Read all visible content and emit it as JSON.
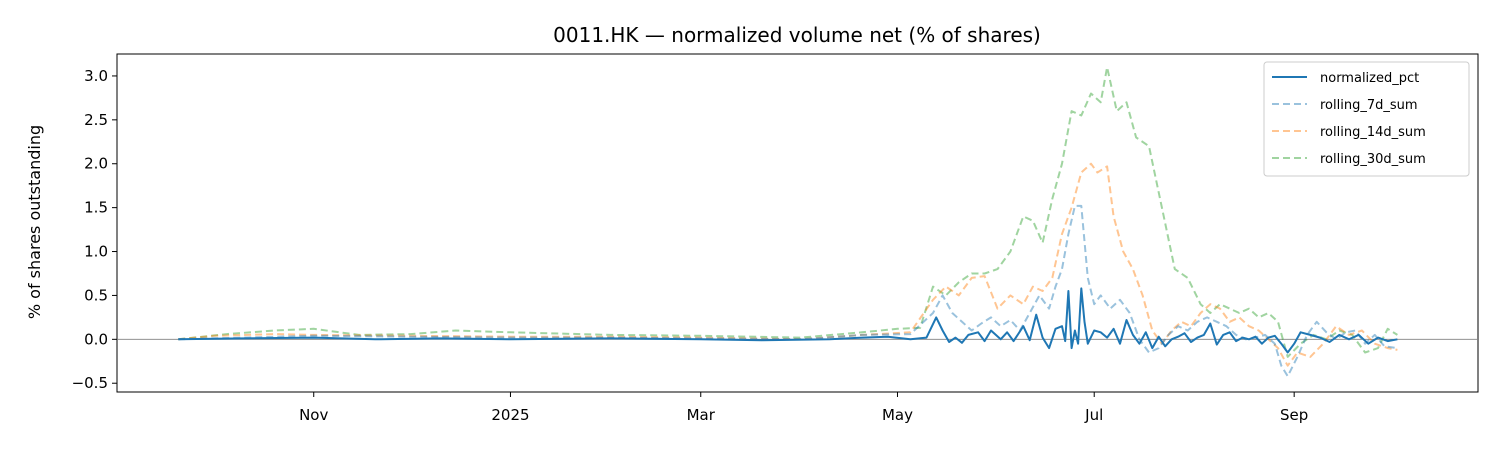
{
  "chart_data": {
    "type": "line",
    "title": "0011.HK — normalized volume net (% of shares)",
    "xlabel": "",
    "ylabel": "% of shares outstanding",
    "x_range": [
      "2024-09-01",
      "2025-10-28"
    ],
    "ylim": [
      -0.6,
      3.25
    ],
    "x_ticks": [
      {
        "date": "2024-11-01",
        "label": "Nov"
      },
      {
        "date": "2025-01-01",
        "label": "2025"
      },
      {
        "date": "2025-03-01",
        "label": "Mar"
      },
      {
        "date": "2025-05-01",
        "label": "May"
      },
      {
        "date": "2025-07-01",
        "label": "Jul"
      },
      {
        "date": "2025-09-01",
        "label": "Sep"
      }
    ],
    "y_ticks": [
      -0.5,
      0.0,
      0.5,
      1.0,
      1.5,
      2.0,
      2.5,
      3.0
    ],
    "y_tick_labels": [
      "−0.5",
      "0.0",
      "0.5",
      "1.0",
      "1.5",
      "2.0",
      "2.5",
      "3.0"
    ],
    "zero_line": true,
    "grid": false,
    "legend_position": "top-right",
    "series": [
      {
        "name": "normalized_pct",
        "color": "#1f77b4",
        "style": "solid",
        "points": [
          [
            "2024-09-20",
            0.0
          ],
          [
            "2024-10-10",
            0.01
          ],
          [
            "2024-11-01",
            0.02
          ],
          [
            "2024-11-20",
            0.0
          ],
          [
            "2024-12-10",
            0.01
          ],
          [
            "2025-01-01",
            0.0
          ],
          [
            "2025-02-01",
            0.01
          ],
          [
            "2025-03-01",
            0.0
          ],
          [
            "2025-03-20",
            -0.01
          ],
          [
            "2025-04-10",
            0.0
          ],
          [
            "2025-04-20",
            0.02
          ],
          [
            "2025-04-28",
            0.03
          ],
          [
            "2025-05-05",
            0.0
          ],
          [
            "2025-05-10",
            0.02
          ],
          [
            "2025-05-13",
            0.25
          ],
          [
            "2025-05-15",
            0.1
          ],
          [
            "2025-05-17",
            -0.03
          ],
          [
            "2025-05-19",
            0.02
          ],
          [
            "2025-05-21",
            -0.04
          ],
          [
            "2025-05-23",
            0.05
          ],
          [
            "2025-05-26",
            0.08
          ],
          [
            "2025-05-28",
            -0.02
          ],
          [
            "2025-05-30",
            0.1
          ],
          [
            "2025-06-02",
            0.0
          ],
          [
            "2025-06-04",
            0.08
          ],
          [
            "2025-06-06",
            -0.02
          ],
          [
            "2025-06-09",
            0.15
          ],
          [
            "2025-06-11",
            -0.01
          ],
          [
            "2025-06-13",
            0.28
          ],
          [
            "2025-06-15",
            0.02
          ],
          [
            "2025-06-17",
            -0.1
          ],
          [
            "2025-06-19",
            0.12
          ],
          [
            "2025-06-21",
            0.15
          ],
          [
            "2025-06-22",
            -0.02
          ],
          [
            "2025-06-23",
            0.55
          ],
          [
            "2025-06-24",
            -0.1
          ],
          [
            "2025-06-25",
            0.1
          ],
          [
            "2025-06-26",
            -0.05
          ],
          [
            "2025-06-27",
            0.58
          ],
          [
            "2025-06-28",
            0.2
          ],
          [
            "2025-06-29",
            -0.05
          ],
          [
            "2025-07-01",
            0.1
          ],
          [
            "2025-07-03",
            0.08
          ],
          [
            "2025-07-05",
            0.02
          ],
          [
            "2025-07-07",
            0.12
          ],
          [
            "2025-07-09",
            -0.05
          ],
          [
            "2025-07-11",
            0.22
          ],
          [
            "2025-07-13",
            0.05
          ],
          [
            "2025-07-15",
            -0.05
          ],
          [
            "2025-07-17",
            0.08
          ],
          [
            "2025-07-19",
            -0.1
          ],
          [
            "2025-07-21",
            0.03
          ],
          [
            "2025-07-23",
            -0.08
          ],
          [
            "2025-07-25",
            0.0
          ],
          [
            "2025-07-27",
            0.03
          ],
          [
            "2025-07-29",
            0.07
          ],
          [
            "2025-07-31",
            -0.03
          ],
          [
            "2025-08-02",
            0.02
          ],
          [
            "2025-08-04",
            0.05
          ],
          [
            "2025-08-06",
            0.18
          ],
          [
            "2025-08-08",
            -0.06
          ],
          [
            "2025-08-10",
            0.05
          ],
          [
            "2025-08-12",
            0.08
          ],
          [
            "2025-08-14",
            -0.02
          ],
          [
            "2025-08-16",
            0.02
          ],
          [
            "2025-08-18",
            0.0
          ],
          [
            "2025-08-20",
            0.03
          ],
          [
            "2025-08-22",
            -0.05
          ],
          [
            "2025-08-24",
            0.02
          ],
          [
            "2025-08-26",
            0.04
          ],
          [
            "2025-08-28",
            -0.05
          ],
          [
            "2025-08-30",
            -0.15
          ],
          [
            "2025-09-01",
            -0.05
          ],
          [
            "2025-09-03",
            0.08
          ],
          [
            "2025-09-06",
            0.05
          ],
          [
            "2025-09-09",
            0.02
          ],
          [
            "2025-09-12",
            -0.03
          ],
          [
            "2025-09-15",
            0.05
          ],
          [
            "2025-09-18",
            0.0
          ],
          [
            "2025-09-21",
            0.05
          ],
          [
            "2025-09-24",
            -0.05
          ],
          [
            "2025-09-27",
            0.02
          ],
          [
            "2025-09-30",
            -0.02
          ],
          [
            "2025-10-03",
            0.0
          ]
        ]
      },
      {
        "name": "rolling_7d_sum",
        "color": "#1f77b4",
        "style": "dashed",
        "points": [
          [
            "2024-09-20",
            0.0
          ],
          [
            "2024-10-10",
            0.02
          ],
          [
            "2024-11-01",
            0.04
          ],
          [
            "2024-12-01",
            0.03
          ],
          [
            "2025-01-01",
            0.02
          ],
          [
            "2025-02-01",
            0.02
          ],
          [
            "2025-03-01",
            0.01
          ],
          [
            "2025-04-01",
            0.0
          ],
          [
            "2025-04-20",
            0.05
          ],
          [
            "2025-05-05",
            0.06
          ],
          [
            "2025-05-12",
            0.3
          ],
          [
            "2025-05-15",
            0.5
          ],
          [
            "2025-05-18",
            0.3
          ],
          [
            "2025-05-21",
            0.2
          ],
          [
            "2025-05-24",
            0.1
          ],
          [
            "2025-05-27",
            0.18
          ],
          [
            "2025-05-30",
            0.25
          ],
          [
            "2025-06-02",
            0.15
          ],
          [
            "2025-06-05",
            0.22
          ],
          [
            "2025-06-08",
            0.1
          ],
          [
            "2025-06-11",
            0.3
          ],
          [
            "2025-06-14",
            0.5
          ],
          [
            "2025-06-17",
            0.35
          ],
          [
            "2025-06-19",
            0.6
          ],
          [
            "2025-06-21",
            0.8
          ],
          [
            "2025-06-23",
            1.2
          ],
          [
            "2025-06-25",
            1.52
          ],
          [
            "2025-06-27",
            1.52
          ],
          [
            "2025-06-29",
            0.7
          ],
          [
            "2025-07-01",
            0.4
          ],
          [
            "2025-07-03",
            0.5
          ],
          [
            "2025-07-06",
            0.35
          ],
          [
            "2025-07-09",
            0.45
          ],
          [
            "2025-07-12",
            0.3
          ],
          [
            "2025-07-15",
            0.0
          ],
          [
            "2025-07-18",
            -0.15
          ],
          [
            "2025-07-21",
            -0.1
          ],
          [
            "2025-07-24",
            0.05
          ],
          [
            "2025-07-27",
            0.15
          ],
          [
            "2025-07-30",
            0.1
          ],
          [
            "2025-08-02",
            0.2
          ],
          [
            "2025-08-05",
            0.25
          ],
          [
            "2025-08-08",
            0.2
          ],
          [
            "2025-08-11",
            0.15
          ],
          [
            "2025-08-14",
            0.05
          ],
          [
            "2025-08-17",
            0.0
          ],
          [
            "2025-08-20",
            0.02
          ],
          [
            "2025-08-23",
            0.05
          ],
          [
            "2025-08-26",
            -0.05
          ],
          [
            "2025-08-28",
            -0.3
          ],
          [
            "2025-08-30",
            -0.42
          ],
          [
            "2025-09-02",
            -0.2
          ],
          [
            "2025-09-05",
            0.05
          ],
          [
            "2025-09-08",
            0.2
          ],
          [
            "2025-09-11",
            0.08
          ],
          [
            "2025-09-14",
            0.0
          ],
          [
            "2025-09-17",
            0.08
          ],
          [
            "2025-09-20",
            0.1
          ],
          [
            "2025-09-23",
            -0.05
          ],
          [
            "2025-09-26",
            0.05
          ],
          [
            "2025-09-29",
            -0.08
          ],
          [
            "2025-10-03",
            -0.1
          ]
        ]
      },
      {
        "name": "rolling_14d_sum",
        "color": "#ff7f0e",
        "style": "dashed",
        "points": [
          [
            "2024-09-20",
            0.0
          ],
          [
            "2024-10-01",
            0.04
          ],
          [
            "2024-10-20",
            0.06
          ],
          [
            "2024-11-01",
            0.05
          ],
          [
            "2024-12-01",
            0.04
          ],
          [
            "2025-01-01",
            0.03
          ],
          [
            "2025-02-01",
            0.03
          ],
          [
            "2025-03-01",
            0.02
          ],
          [
            "2025-04-01",
            0.0
          ],
          [
            "2025-04-20",
            0.05
          ],
          [
            "2025-05-05",
            0.08
          ],
          [
            "2025-05-12",
            0.45
          ],
          [
            "2025-05-16",
            0.6
          ],
          [
            "2025-05-20",
            0.5
          ],
          [
            "2025-05-24",
            0.7
          ],
          [
            "2025-05-28",
            0.72
          ],
          [
            "2025-06-01",
            0.35
          ],
          [
            "2025-06-05",
            0.5
          ],
          [
            "2025-06-09",
            0.4
          ],
          [
            "2025-06-12",
            0.6
          ],
          [
            "2025-06-15",
            0.55
          ],
          [
            "2025-06-18",
            0.7
          ],
          [
            "2025-06-21",
            1.2
          ],
          [
            "2025-06-24",
            1.5
          ],
          [
            "2025-06-27",
            1.9
          ],
          [
            "2025-06-30",
            2.0
          ],
          [
            "2025-07-02",
            1.9
          ],
          [
            "2025-07-05",
            1.97
          ],
          [
            "2025-07-07",
            1.4
          ],
          [
            "2025-07-10",
            1.0
          ],
          [
            "2025-07-13",
            0.8
          ],
          [
            "2025-07-16",
            0.5
          ],
          [
            "2025-07-19",
            0.1
          ],
          [
            "2025-07-22",
            -0.05
          ],
          [
            "2025-07-25",
            0.1
          ],
          [
            "2025-07-28",
            0.2
          ],
          [
            "2025-07-31",
            0.15
          ],
          [
            "2025-08-03",
            0.3
          ],
          [
            "2025-08-06",
            0.4
          ],
          [
            "2025-08-09",
            0.35
          ],
          [
            "2025-08-12",
            0.2
          ],
          [
            "2025-08-15",
            0.25
          ],
          [
            "2025-08-18",
            0.15
          ],
          [
            "2025-08-21",
            0.1
          ],
          [
            "2025-08-24",
            0.0
          ],
          [
            "2025-08-27",
            -0.1
          ],
          [
            "2025-08-30",
            -0.3
          ],
          [
            "2025-09-02",
            -0.15
          ],
          [
            "2025-09-06",
            -0.2
          ],
          [
            "2025-09-10",
            -0.05
          ],
          [
            "2025-09-14",
            0.15
          ],
          [
            "2025-09-18",
            0.05
          ],
          [
            "2025-09-22",
            0.1
          ],
          [
            "2025-09-26",
            -0.05
          ],
          [
            "2025-09-30",
            -0.1
          ],
          [
            "2025-10-03",
            -0.12
          ]
        ]
      },
      {
        "name": "rolling_30d_sum",
        "color": "#2ca02c",
        "style": "dashed",
        "points": [
          [
            "2024-09-20",
            0.0
          ],
          [
            "2024-10-05",
            0.06
          ],
          [
            "2024-10-20",
            0.1
          ],
          [
            "2024-11-01",
            0.12
          ],
          [
            "2024-11-15",
            0.05
          ],
          [
            "2024-12-01",
            0.06
          ],
          [
            "2024-12-15",
            0.1
          ],
          [
            "2025-01-01",
            0.08
          ],
          [
            "2025-02-01",
            0.05
          ],
          [
            "2025-03-01",
            0.04
          ],
          [
            "2025-04-01",
            0.02
          ],
          [
            "2025-04-20",
            0.08
          ],
          [
            "2025-05-01",
            0.12
          ],
          [
            "2025-05-08",
            0.13
          ],
          [
            "2025-05-12",
            0.6
          ],
          [
            "2025-05-16",
            0.5
          ],
          [
            "2025-05-20",
            0.65
          ],
          [
            "2025-05-24",
            0.75
          ],
          [
            "2025-05-28",
            0.75
          ],
          [
            "2025-06-01",
            0.8
          ],
          [
            "2025-06-05",
            1.0
          ],
          [
            "2025-06-09",
            1.4
          ],
          [
            "2025-06-12",
            1.35
          ],
          [
            "2025-06-15",
            1.1
          ],
          [
            "2025-06-18",
            1.6
          ],
          [
            "2025-06-21",
            2.0
          ],
          [
            "2025-06-24",
            2.6
          ],
          [
            "2025-06-27",
            2.55
          ],
          [
            "2025-06-30",
            2.8
          ],
          [
            "2025-07-03",
            2.7
          ],
          [
            "2025-07-05",
            3.1
          ],
          [
            "2025-07-08",
            2.6
          ],
          [
            "2025-07-11",
            2.7
          ],
          [
            "2025-07-14",
            2.3
          ],
          [
            "2025-07-18",
            2.2
          ],
          [
            "2025-07-22",
            1.5
          ],
          [
            "2025-07-26",
            0.8
          ],
          [
            "2025-07-30",
            0.7
          ],
          [
            "2025-08-03",
            0.4
          ],
          [
            "2025-08-06",
            0.3
          ],
          [
            "2025-08-09",
            0.4
          ],
          [
            "2025-08-12",
            0.35
          ],
          [
            "2025-08-15",
            0.3
          ],
          [
            "2025-08-18",
            0.35
          ],
          [
            "2025-08-21",
            0.25
          ],
          [
            "2025-08-24",
            0.3
          ],
          [
            "2025-08-27",
            0.2
          ],
          [
            "2025-08-30",
            -0.2
          ],
          [
            "2025-09-03",
            -0.05
          ],
          [
            "2025-09-07",
            0.05
          ],
          [
            "2025-09-11",
            0.0
          ],
          [
            "2025-09-15",
            0.1
          ],
          [
            "2025-09-19",
            0.05
          ],
          [
            "2025-09-23",
            -0.15
          ],
          [
            "2025-09-27",
            -0.1
          ],
          [
            "2025-09-30",
            0.12
          ],
          [
            "2025-10-03",
            0.05
          ]
        ]
      }
    ]
  }
}
